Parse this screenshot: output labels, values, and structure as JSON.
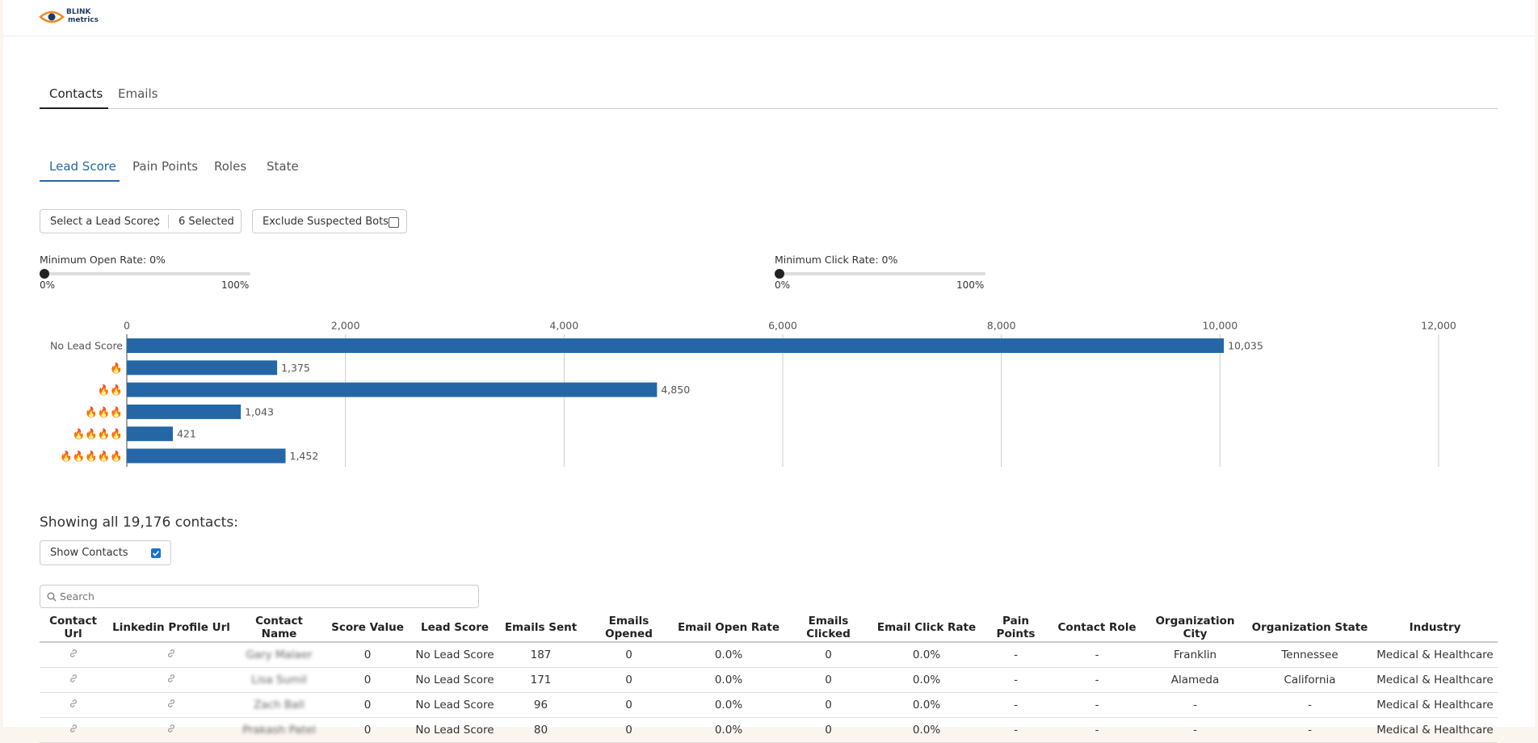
{
  "header": {
    "brand": "BLINK",
    "brand_sub": "metrics"
  },
  "tabs": [
    "Contacts",
    "Emails"
  ],
  "subtabs": [
    "Lead Score",
    "Pain Points",
    "Roles",
    "State"
  ],
  "filters": {
    "select": "Select a Lead Score",
    "selected": "6 Selected",
    "bots": "Exclude Suspected Bots"
  },
  "sliders": [
    {
      "label": "Minimum Open Rate: 0%",
      "min": "0%",
      "max": "100%"
    },
    {
      "label": "Minimum Click Rate: 0%",
      "min": "0%",
      "max": "100%"
    }
  ],
  "chart_data": {
    "type": "bar",
    "orientation": "horizontal",
    "categories": [
      "No Lead Score",
      "🔥",
      "🔥🔥",
      "🔥🔥🔥",
      "🔥🔥🔥🔥",
      "🔥🔥🔥🔥🔥"
    ],
    "values": [
      10035,
      1375,
      4850,
      1043,
      421,
      1452
    ],
    "value_labels": [
      "10,035",
      "1,375",
      "4,850",
      "1,043",
      "421",
      "1,452"
    ],
    "color": "#2567a6",
    "xlim": [
      0,
      12000
    ],
    "xticks": [
      0,
      {
        "value": 2000,
        "label": "2,000"
      },
      {
        "value": 4000,
        "label": "4,000"
      },
      {
        "value": 6000,
        "label": "6,000"
      },
      {
        "value": 8000,
        "label": "8,000"
      },
      {
        "value": 10000,
        "label": "10,000"
      },
      {
        "value": 12000,
        "label": "12,000"
      }
    ],
    "grid": true
  },
  "summary": "Showing all 19,176 contacts:",
  "show_contacts": "Show Contacts",
  "search_placeholder": "Search",
  "table": {
    "columns": [
      "Contact Url",
      "Linkedin Profile Url",
      "Contact Name",
      "Score Value",
      "Lead Score",
      "Emails Sent",
      "Emails Opened",
      "Email Open Rate",
      "Emails Clicked",
      "Email Click Rate",
      "Pain Points",
      "Contact Role",
      "Organization City",
      "Organization State",
      "Industry"
    ],
    "rows": [
      [
        "Gary Malaer",
        "0",
        "No Lead Score",
        "187",
        "0",
        "0.0%",
        "0",
        "0.0%",
        "-",
        "-",
        "Franklin",
        "Tennessee",
        "Medical & Healthcare"
      ],
      [
        "Lisa Sumil",
        "0",
        "No Lead Score",
        "171",
        "0",
        "0.0%",
        "0",
        "0.0%",
        "-",
        "-",
        "Alameda",
        "California",
        "Medical & Healthcare"
      ],
      [
        "Zach Ball",
        "0",
        "No Lead Score",
        "96",
        "0",
        "0.0%",
        "0",
        "0.0%",
        "-",
        "-",
        "-",
        "-",
        "Medical & Healthcare"
      ],
      [
        "Prakash Patel",
        "0",
        "No Lead Score",
        "80",
        "0",
        "0.0%",
        "0",
        "0.0%",
        "-",
        "-",
        "-",
        "-",
        "Medical & Healthcare"
      ]
    ]
  }
}
